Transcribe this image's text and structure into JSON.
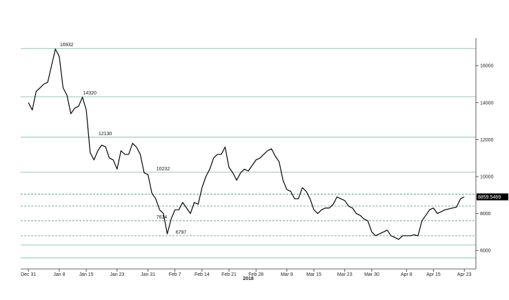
{
  "chart_data": {
    "type": "line",
    "title": "",
    "xlabel": "",
    "ylabel": "",
    "year_label": "2018",
    "x_ticks": [
      "Dec 31",
      "Jan 8",
      "Jan 15",
      "Jan 23",
      "Jan 31",
      "Feb 7",
      "Feb 14",
      "Feb 21",
      "Feb 28",
      "Mar 8",
      "Mar 15",
      "Mar 23",
      "Mar 30",
      "Apr 8",
      "Apr 15",
      "Apr 23"
    ],
    "y_ticks": [
      6000,
      8000,
      10000,
      12000,
      14000,
      16000
    ],
    "ylim": [
      5000,
      17500
    ],
    "xlim": [
      "2017-12-29",
      "2018-04-26"
    ],
    "grid": false,
    "legend": "none",
    "colors": {
      "line": "#000000",
      "level_line": "#6fb8a6",
      "dashed_level": "#3c9a8a",
      "axis": "#333333",
      "last_value_bg": "#000000"
    },
    "solid_levels": [
      16932,
      14320,
      12130,
      10232,
      6300,
      5600
    ],
    "dashed_levels": [
      9050,
      8400,
      7614,
      6797
    ],
    "annotations": [
      {
        "label": "16932",
        "x": "2018-01-08",
        "y": 16932
      },
      {
        "label": "14320",
        "x": "2018-01-14",
        "y": 14320
      },
      {
        "label": "12130",
        "x": "2018-01-18",
        "y": 12130
      },
      {
        "label": "10232",
        "x": "2018-02-02",
        "y": 10232
      },
      {
        "label": "7614",
        "x": "2018-02-02",
        "y": 7614
      },
      {
        "label": "6797",
        "x": "2018-02-07",
        "y": 6797
      }
    ],
    "last_value": "8859.5469",
    "series": [
      {
        "x": [
          "2017-12-31",
          "2018-01-01",
          "2018-01-02",
          "2018-01-03",
          "2018-01-04",
          "2018-01-05",
          "2018-01-06",
          "2018-01-07",
          "2018-01-08",
          "2018-01-09",
          "2018-01-10",
          "2018-01-11",
          "2018-01-12",
          "2018-01-13",
          "2018-01-14",
          "2018-01-15",
          "2018-01-16",
          "2018-01-17",
          "2018-01-18",
          "2018-01-19",
          "2018-01-20",
          "2018-01-21",
          "2018-01-22",
          "2018-01-23",
          "2018-01-24",
          "2018-01-25",
          "2018-01-26",
          "2018-01-27",
          "2018-01-28",
          "2018-01-29",
          "2018-01-30",
          "2018-01-31",
          "2018-02-01",
          "2018-02-02",
          "2018-02-03",
          "2018-02-04",
          "2018-02-05",
          "2018-02-06",
          "2018-02-07",
          "2018-02-08",
          "2018-02-09",
          "2018-02-10",
          "2018-02-11",
          "2018-02-12",
          "2018-02-13",
          "2018-02-14",
          "2018-02-15",
          "2018-02-16",
          "2018-02-17",
          "2018-02-18",
          "2018-02-19",
          "2018-02-20",
          "2018-02-21",
          "2018-02-22",
          "2018-02-23",
          "2018-02-24",
          "2018-02-25",
          "2018-02-26",
          "2018-02-27",
          "2018-02-28",
          "2018-03-01",
          "2018-03-02",
          "2018-03-03",
          "2018-03-04",
          "2018-03-05",
          "2018-03-06",
          "2018-03-07",
          "2018-03-08",
          "2018-03-09",
          "2018-03-10",
          "2018-03-11",
          "2018-03-12",
          "2018-03-13",
          "2018-03-14",
          "2018-03-15",
          "2018-03-16",
          "2018-03-17",
          "2018-03-18",
          "2018-03-19",
          "2018-03-20",
          "2018-03-21",
          "2018-03-22",
          "2018-03-23",
          "2018-03-24",
          "2018-03-25",
          "2018-03-26",
          "2018-03-27",
          "2018-03-28",
          "2018-03-29",
          "2018-03-30",
          "2018-03-31",
          "2018-04-01",
          "2018-04-02",
          "2018-04-03",
          "2018-04-04",
          "2018-04-05",
          "2018-04-06",
          "2018-04-07",
          "2018-04-08",
          "2018-04-09",
          "2018-04-10",
          "2018-04-11",
          "2018-04-12",
          "2018-04-13",
          "2018-04-14",
          "2018-04-15",
          "2018-04-16",
          "2018-04-17",
          "2018-04-18",
          "2018-04-19",
          "2018-04-20",
          "2018-04-21",
          "2018-04-22",
          "2018-04-23"
        ],
        "values": [
          14000,
          13600,
          14600,
          14800,
          15000,
          15100,
          16000,
          16900,
          16500,
          14800,
          14400,
          13400,
          13700,
          13800,
          14300,
          13600,
          11300,
          10900,
          11400,
          11700,
          11600,
          11000,
          10900,
          10400,
          11400,
          11200,
          11200,
          11800,
          11600,
          11200,
          10200,
          10100,
          9100,
          8800,
          8200,
          8000,
          6900,
          7700,
          8200,
          8200,
          8600,
          8300,
          8000,
          8600,
          8500,
          9400,
          10000,
          10400,
          11000,
          11200,
          11200,
          11600,
          10500,
          10200,
          9800,
          10200,
          10400,
          10300,
          10600,
          10900,
          11000,
          11200,
          11400,
          11500,
          11100,
          10800,
          9800,
          9300,
          9200,
          8800,
          8800,
          9400,
          9200,
          8800,
          8200,
          8000,
          8200,
          8300,
          8300,
          8500,
          8900,
          8800,
          8700,
          8400,
          8300,
          8000,
          7900,
          7700,
          7600,
          7000,
          6800,
          6900,
          7000,
          7100,
          6800,
          6700,
          6600,
          6800,
          6800,
          6800,
          6850,
          6800,
          7600,
          7900,
          8200,
          8300,
          8000,
          8100,
          8200,
          8250,
          8300,
          8350,
          8800,
          8900
        ]
      }
    ]
  }
}
